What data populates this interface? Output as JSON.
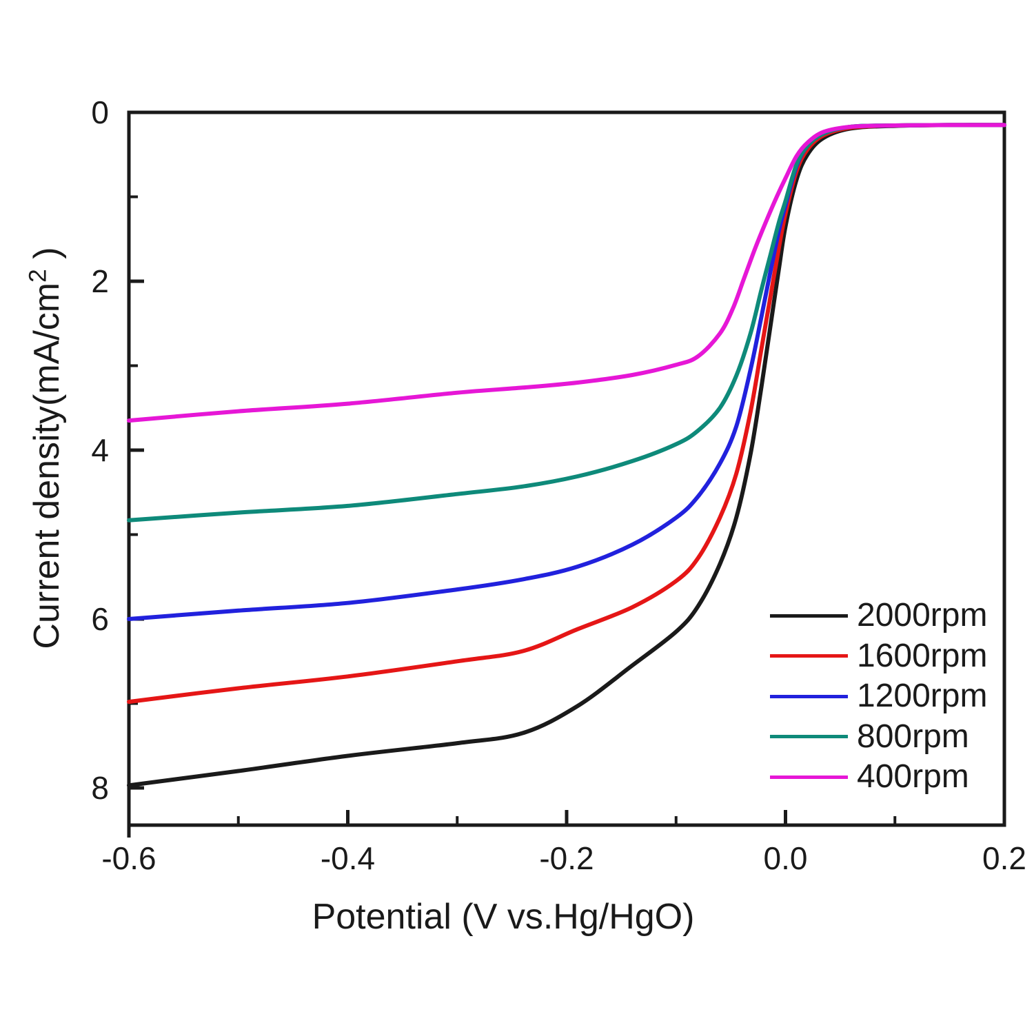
{
  "figure": {
    "background": "#ffffff",
    "text_color": "#1a1a1a"
  },
  "chart_data": {
    "type": "line",
    "title": "",
    "xlabel": "Potential (V vs.Hg/HgO)",
    "ylabel": "Current density(mA/cm² )",
    "ylabel_parts": {
      "main": "Current density(mA/cm",
      "sup": "2",
      "tail": " )"
    },
    "xlim": [
      -0.6,
      0.2
    ],
    "ylim": [
      0,
      8.44
    ],
    "y_axis_inverted": true,
    "grid": false,
    "legend_position": "inside lower right",
    "x_ticks_major": [
      -0.6,
      -0.4,
      -0.2,
      0.0,
      0.2
    ],
    "x_tick_labels": [
      "-0.6",
      "-0.4",
      "-0.2",
      "0.0",
      "0.2"
    ],
    "x_ticks_minor": [
      -0.5,
      -0.3,
      -0.1,
      0.1
    ],
    "y_ticks_major": [
      0,
      2,
      4,
      6,
      8
    ],
    "y_tick_labels": [
      "0",
      "2",
      "4",
      "6",
      "8"
    ],
    "y_ticks_minor": [
      1,
      3,
      5,
      7
    ],
    "series": [
      {
        "name": "2000rpm",
        "color": "#1a1a1a",
        "points": [
          [
            -0.6,
            7.97
          ],
          [
            -0.5,
            7.8
          ],
          [
            -0.4,
            7.62
          ],
          [
            -0.3,
            7.47
          ],
          [
            -0.24,
            7.35
          ],
          [
            -0.19,
            7.03
          ],
          [
            -0.14,
            6.55
          ],
          [
            -0.1,
            6.15
          ],
          [
            -0.08,
            5.85
          ],
          [
            -0.06,
            5.35
          ],
          [
            -0.045,
            4.8
          ],
          [
            -0.032,
            4.05
          ],
          [
            -0.022,
            3.25
          ],
          [
            -0.014,
            2.55
          ],
          [
            -0.006,
            1.85
          ],
          [
            0.0,
            1.35
          ],
          [
            0.01,
            0.8
          ],
          [
            0.02,
            0.5
          ],
          [
            0.035,
            0.3
          ],
          [
            0.06,
            0.19
          ],
          [
            0.1,
            0.16
          ],
          [
            0.15,
            0.15
          ],
          [
            0.2,
            0.15
          ]
        ]
      },
      {
        "name": "1600rpm",
        "color": "#e51616",
        "points": [
          [
            -0.6,
            6.98
          ],
          [
            -0.5,
            6.82
          ],
          [
            -0.4,
            6.68
          ],
          [
            -0.3,
            6.5
          ],
          [
            -0.24,
            6.38
          ],
          [
            -0.19,
            6.12
          ],
          [
            -0.14,
            5.86
          ],
          [
            -0.1,
            5.55
          ],
          [
            -0.08,
            5.28
          ],
          [
            -0.06,
            4.8
          ],
          [
            -0.045,
            4.28
          ],
          [
            -0.032,
            3.55
          ],
          [
            -0.022,
            2.8
          ],
          [
            -0.014,
            2.2
          ],
          [
            -0.006,
            1.6
          ],
          [
            0.0,
            1.2
          ],
          [
            0.01,
            0.7
          ],
          [
            0.02,
            0.44
          ],
          [
            0.035,
            0.27
          ],
          [
            0.06,
            0.18
          ],
          [
            0.1,
            0.155
          ],
          [
            0.15,
            0.15
          ],
          [
            0.2,
            0.15
          ]
        ]
      },
      {
        "name": "1200rpm",
        "color": "#2121dd",
        "points": [
          [
            -0.6,
            6.0
          ],
          [
            -0.5,
            5.9
          ],
          [
            -0.4,
            5.81
          ],
          [
            -0.3,
            5.65
          ],
          [
            -0.24,
            5.53
          ],
          [
            -0.19,
            5.38
          ],
          [
            -0.14,
            5.12
          ],
          [
            -0.1,
            4.8
          ],
          [
            -0.08,
            4.55
          ],
          [
            -0.06,
            4.16
          ],
          [
            -0.045,
            3.72
          ],
          [
            -0.032,
            3.05
          ],
          [
            -0.022,
            2.42
          ],
          [
            -0.014,
            1.9
          ],
          [
            -0.006,
            1.4
          ],
          [
            0.0,
            1.1
          ],
          [
            0.01,
            0.64
          ],
          [
            0.02,
            0.4
          ],
          [
            0.035,
            0.25
          ],
          [
            0.06,
            0.17
          ],
          [
            0.1,
            0.155
          ],
          [
            0.15,
            0.15
          ],
          [
            0.2,
            0.15
          ]
        ]
      },
      {
        "name": "800rpm",
        "color": "#0e8a7a",
        "points": [
          [
            -0.6,
            4.83
          ],
          [
            -0.5,
            4.74
          ],
          [
            -0.4,
            4.66
          ],
          [
            -0.3,
            4.52
          ],
          [
            -0.24,
            4.43
          ],
          [
            -0.19,
            4.31
          ],
          [
            -0.14,
            4.13
          ],
          [
            -0.1,
            3.93
          ],
          [
            -0.08,
            3.77
          ],
          [
            -0.06,
            3.5
          ],
          [
            -0.045,
            3.12
          ],
          [
            -0.032,
            2.62
          ],
          [
            -0.022,
            2.1
          ],
          [
            -0.014,
            1.7
          ],
          [
            -0.006,
            1.3
          ],
          [
            0.0,
            1.05
          ],
          [
            0.01,
            0.62
          ],
          [
            0.02,
            0.4
          ],
          [
            0.035,
            0.25
          ],
          [
            0.06,
            0.17
          ],
          [
            0.1,
            0.155
          ],
          [
            0.15,
            0.15
          ],
          [
            0.2,
            0.15
          ]
        ]
      },
      {
        "name": "400rpm",
        "color": "#e617d6",
        "points": [
          [
            -0.6,
            3.65
          ],
          [
            -0.5,
            3.54
          ],
          [
            -0.4,
            3.45
          ],
          [
            -0.3,
            3.32
          ],
          [
            -0.24,
            3.26
          ],
          [
            -0.19,
            3.2
          ],
          [
            -0.14,
            3.11
          ],
          [
            -0.1,
            2.99
          ],
          [
            -0.08,
            2.89
          ],
          [
            -0.06,
            2.62
          ],
          [
            -0.048,
            2.32
          ],
          [
            -0.038,
            1.97
          ],
          [
            -0.028,
            1.62
          ],
          [
            -0.018,
            1.3
          ],
          [
            -0.008,
            1.0
          ],
          [
            0.0,
            0.78
          ],
          [
            0.01,
            0.52
          ],
          [
            0.02,
            0.36
          ],
          [
            0.035,
            0.23
          ],
          [
            0.06,
            0.17
          ],
          [
            0.1,
            0.155
          ],
          [
            0.15,
            0.15
          ],
          [
            0.2,
            0.15
          ]
        ]
      }
    ],
    "legend_labels": [
      "2000rpm",
      "1600rpm",
      "1200rpm",
      "800rpm",
      "400rpm"
    ]
  }
}
